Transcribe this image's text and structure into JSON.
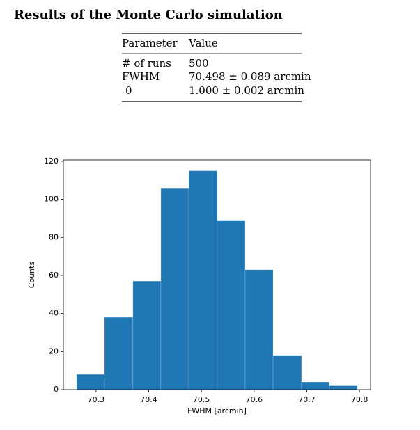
{
  "header": {
    "title": "Results of the Monte Carlo simulation"
  },
  "table": {
    "columns": [
      "Parameter",
      "Value"
    ],
    "rows": [
      [
        "# of runs",
        "500"
      ],
      [
        "FWHM",
        "70.498 ± 0.089 arcmin"
      ],
      [
        "0",
        "1.000 ± 0.002 arcmin"
      ]
    ]
  },
  "chart_data": {
    "type": "histogram",
    "bins": [
      70.263,
      70.316,
      70.37,
      70.423,
      70.476,
      70.53,
      70.583,
      70.636,
      70.69,
      70.743,
      70.796
    ],
    "values": [
      8,
      38,
      57,
      106,
      115,
      89,
      63,
      18,
      4,
      2
    ],
    "color": "#1f77b4",
    "x_label": "FWHM [arcmin]",
    "y_label": "Counts",
    "xlim": [
      70.238,
      70.821
    ],
    "ylim": [
      0,
      120.7
    ],
    "xticks": [
      70.3,
      70.4,
      70.5,
      70.6,
      70.7,
      70.8
    ],
    "yticks": [
      0,
      20,
      40,
      60,
      80,
      100,
      120
    ]
  }
}
